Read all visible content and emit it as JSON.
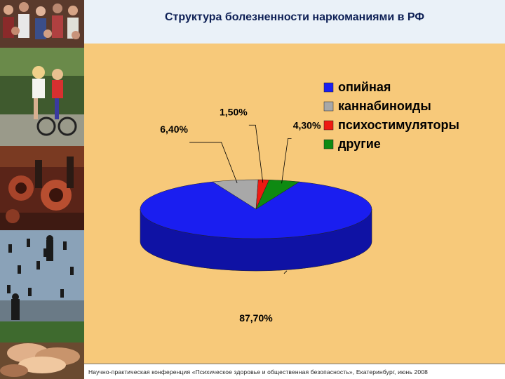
{
  "slide": {
    "title": "Структура болезненности наркоманиями в РФ",
    "footer": "Научно-практическая конференция «Психическое здоровье и общественная безопасность», Екатеринбург, июнь 2008"
  },
  "colors": {
    "background": "#f7c97a",
    "title_bar": "#eaf1f8",
    "title_text": "#0d1f55"
  },
  "chart_data": {
    "type": "pie",
    "style": "3d",
    "title": "",
    "legend_position": "top-right",
    "series": [
      {
        "name": "опийная",
        "value": 87.7,
        "label": "87,70%",
        "color": "#1a1ef0",
        "side_color": "#0f12a4"
      },
      {
        "name": "каннабиноиды",
        "value": 6.4,
        "label": "6,40%",
        "color": "#a8a8a8",
        "side_color": "#7d7d7d"
      },
      {
        "name": "психостимуляторы",
        "value": 1.5,
        "label": "1,50%",
        "color": "#ee1a12",
        "side_color": "#a8120c"
      },
      {
        "name": "другие",
        "value": 4.3,
        "label": "4,30%",
        "color": "#0e8a12",
        "side_color": "#08600b"
      }
    ]
  }
}
